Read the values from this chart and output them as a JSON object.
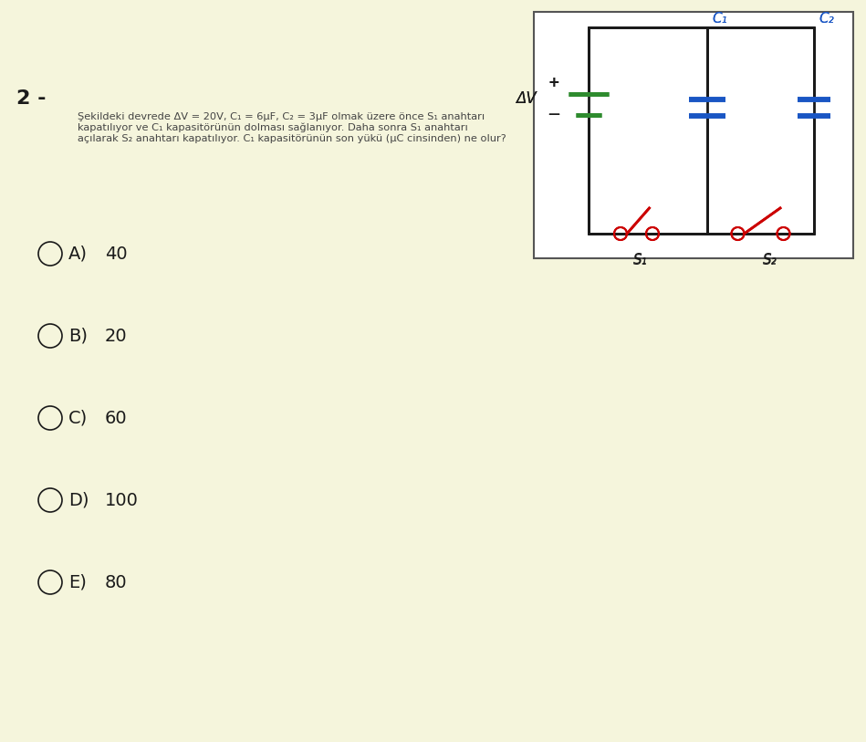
{
  "bg_color": "#f5f5dc",
  "question_number": "2 -",
  "question_text": "Şekildeki devrede ΔV = 20V, C₁ = 6μF, C₂ = 3μF olmak üzere önce S₁ anahtarı\nkapatılıyor ve C₁ kapasitörünün dolması sağlanıyor. Daha sonra S₁ anahtarı\naçılarak S₂ anahtarı kapatılıyor. C₁ kapasitörünün son yükü (μC cinsinden) ne olur?",
  "options": [
    {
      "label": "A)",
      "value": "40"
    },
    {
      "label": "B)",
      "value": "20"
    },
    {
      "label": "C)",
      "value": "60"
    },
    {
      "label": "D)",
      "value": "100"
    },
    {
      "label": "E)",
      "value": "80"
    }
  ],
  "circuit": {
    "wire_color": "#1a1a1a",
    "battery_pos_color": "#2e8b2e",
    "battery_neg_color": "#2e8b2e",
    "capacitor_color": "#1a56c4",
    "switch_color": "#cc0000",
    "switch_open_color": "#cc0000",
    "label_color": "#1a1a1a",
    "delta_v_label": "ΔV",
    "c1_label": "C₁",
    "c2_label": "C₂",
    "s1_label": "S₁",
    "s2_label": "S₂",
    "plus_label": "+",
    "minus_label": "−"
  }
}
